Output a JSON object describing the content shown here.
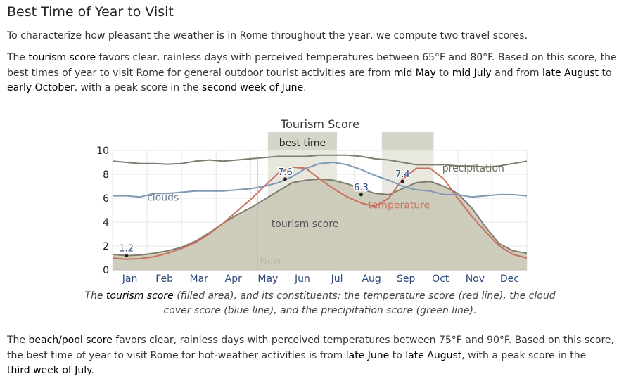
{
  "page": {
    "heading": "Best Time of Year to Visit",
    "intro": "To characterize how pleasant the weather is in Rome throughout the year, we compute two travel scores.",
    "tourism_para": {
      "t1": "The ",
      "b1": "tourism score",
      "t2": " favors clear, rainless days with perceived temperatures between 65°F and 80°F. Based on this score, the best times of year to visit Rome for general outdoor tourist activities are from ",
      "b2": "mid May",
      "t3": " to ",
      "b3": "mid July",
      "t4": " and from ",
      "b4": "late August",
      "t5": " to ",
      "b5": "early October",
      "t6": ", with a peak score in the ",
      "b6": "second week of June",
      "t7": "."
    },
    "caption": {
      "t1": "The ",
      "b1": "tourism score",
      "t2": " (filled area), and its constituents: the temperature score (red line), the cloud cover score (blue line), and the precipitation score (green line)."
    },
    "beach_para": {
      "t1": "The ",
      "b1": "beach/pool score",
      "t2": " favors clear, rainless days with perceived temperatures between 75°F and 90°F. Based on this score, the best time of year to visit Rome for hot-weather activities is from ",
      "b2": "late June",
      "t3": " to ",
      "b3": "late August",
      "t4": ", with a peak score in the ",
      "b4": "third week of July",
      "t5": "."
    }
  },
  "chart_data": {
    "type": "area",
    "title": "Tourism Score",
    "ylim": [
      0,
      10
    ],
    "yticks": [
      0,
      2,
      4,
      6,
      8,
      10
    ],
    "xlim": [
      0,
      12
    ],
    "months": [
      "Jan",
      "Feb",
      "Mar",
      "Apr",
      "May",
      "Jun",
      "Jul",
      "Aug",
      "Sep",
      "Oct",
      "Nov",
      "Dec"
    ],
    "best_time": {
      "label": "best time",
      "ranges": [
        [
          4.5,
          6.5
        ],
        [
          7.8,
          9.3
        ]
      ]
    },
    "now": {
      "label": "Now",
      "x": 4.2
    },
    "series": [
      {
        "name": "tourism score",
        "kind": "area",
        "color": "#7d7c6e",
        "fill": "#cbcab8",
        "x": [
          0.0,
          0.4,
          0.8,
          1.2,
          1.6,
          2.0,
          2.4,
          2.8,
          3.2,
          3.6,
          4.0,
          4.4,
          4.8,
          5.2,
          5.6,
          6.0,
          6.4,
          6.8,
          7.2,
          7.6,
          8.0,
          8.4,
          8.8,
          9.2,
          9.6,
          10.0,
          10.4,
          10.8,
          11.2,
          11.6,
          12.0
        ],
        "y": [
          1.3,
          1.2,
          1.25,
          1.4,
          1.6,
          1.9,
          2.4,
          3.1,
          3.9,
          4.6,
          5.2,
          5.9,
          6.6,
          7.3,
          7.5,
          7.6,
          7.5,
          7.2,
          6.8,
          6.4,
          6.3,
          6.8,
          7.3,
          7.4,
          7.0,
          6.4,
          5.2,
          3.6,
          2.2,
          1.6,
          1.4
        ]
      },
      {
        "name": "temperature",
        "kind": "line",
        "color": "#c9705f",
        "x": [
          0.0,
          0.4,
          0.8,
          1.2,
          1.6,
          2.0,
          2.4,
          2.8,
          3.2,
          3.6,
          4.0,
          4.4,
          4.8,
          5.2,
          5.6,
          6.0,
          6.4,
          6.8,
          7.2,
          7.6,
          8.0,
          8.4,
          8.8,
          9.2,
          9.6,
          10.0,
          10.4,
          10.8,
          11.2,
          11.6,
          12.0
        ],
        "y": [
          1.0,
          0.9,
          0.95,
          1.1,
          1.4,
          1.8,
          2.3,
          3.0,
          3.9,
          4.9,
          5.9,
          7.0,
          8.1,
          8.6,
          8.5,
          7.6,
          6.8,
          6.1,
          5.6,
          5.3,
          6.0,
          7.6,
          8.5,
          8.5,
          7.6,
          6.0,
          4.5,
          3.2,
          2.0,
          1.3,
          1.0
        ]
      },
      {
        "name": "clouds",
        "kind": "line",
        "color": "#7f98b3",
        "x": [
          0.0,
          0.4,
          0.8,
          1.2,
          1.6,
          2.0,
          2.4,
          2.8,
          3.2,
          3.6,
          4.0,
          4.4,
          4.8,
          5.2,
          5.6,
          6.0,
          6.4,
          6.8,
          7.2,
          7.6,
          8.0,
          8.4,
          8.8,
          9.2,
          9.6,
          10.0,
          10.4,
          10.8,
          11.2,
          11.6,
          12.0
        ],
        "y": [
          6.2,
          6.2,
          6.1,
          6.4,
          6.4,
          6.5,
          6.6,
          6.6,
          6.6,
          6.7,
          6.8,
          7.0,
          7.3,
          7.8,
          8.5,
          8.9,
          9.0,
          8.8,
          8.4,
          7.9,
          7.5,
          7.0,
          6.7,
          6.6,
          6.3,
          6.3,
          6.1,
          6.2,
          6.3,
          6.3,
          6.2
        ]
      },
      {
        "name": "precipitation",
        "kind": "line",
        "color": "#7d7c6e",
        "x": [
          0.0,
          0.4,
          0.8,
          1.2,
          1.6,
          2.0,
          2.4,
          2.8,
          3.2,
          3.6,
          4.0,
          4.4,
          4.8,
          5.2,
          5.6,
          6.0,
          6.4,
          6.8,
          7.2,
          7.6,
          8.0,
          8.4,
          8.8,
          9.2,
          9.6,
          10.0,
          10.4,
          10.8,
          11.2,
          11.6,
          12.0
        ],
        "y": [
          9.1,
          9.0,
          8.9,
          8.9,
          8.85,
          8.9,
          9.1,
          9.2,
          9.1,
          9.2,
          9.3,
          9.4,
          9.5,
          9.5,
          9.5,
          9.6,
          9.6,
          9.6,
          9.5,
          9.3,
          9.2,
          9.0,
          8.8,
          8.8,
          8.8,
          8.7,
          8.7,
          8.6,
          8.7,
          8.9,
          9.1
        ]
      }
    ],
    "series_labels": [
      {
        "text": "clouds",
        "x": 1.0,
        "y": 5.8,
        "color": "#6f7f96"
      },
      {
        "text": "tourism score",
        "x": 4.6,
        "y": 3.6,
        "color": "#555555"
      },
      {
        "text": "temperature",
        "x": 7.4,
        "y": 5.15,
        "color": "#c9705f"
      },
      {
        "text": "precipitation",
        "x": 9.55,
        "y": 8.25,
        "color": "#6f6e60"
      }
    ],
    "annotations": [
      {
        "label": "1.2",
        "x": 0.4,
        "y": 1.2
      },
      {
        "label": "7.6",
        "x": 5.0,
        "y": 7.6
      },
      {
        "label": "6.3",
        "x": 7.2,
        "y": 6.3
      },
      {
        "label": "7.4",
        "x": 8.4,
        "y": 7.4
      }
    ]
  }
}
